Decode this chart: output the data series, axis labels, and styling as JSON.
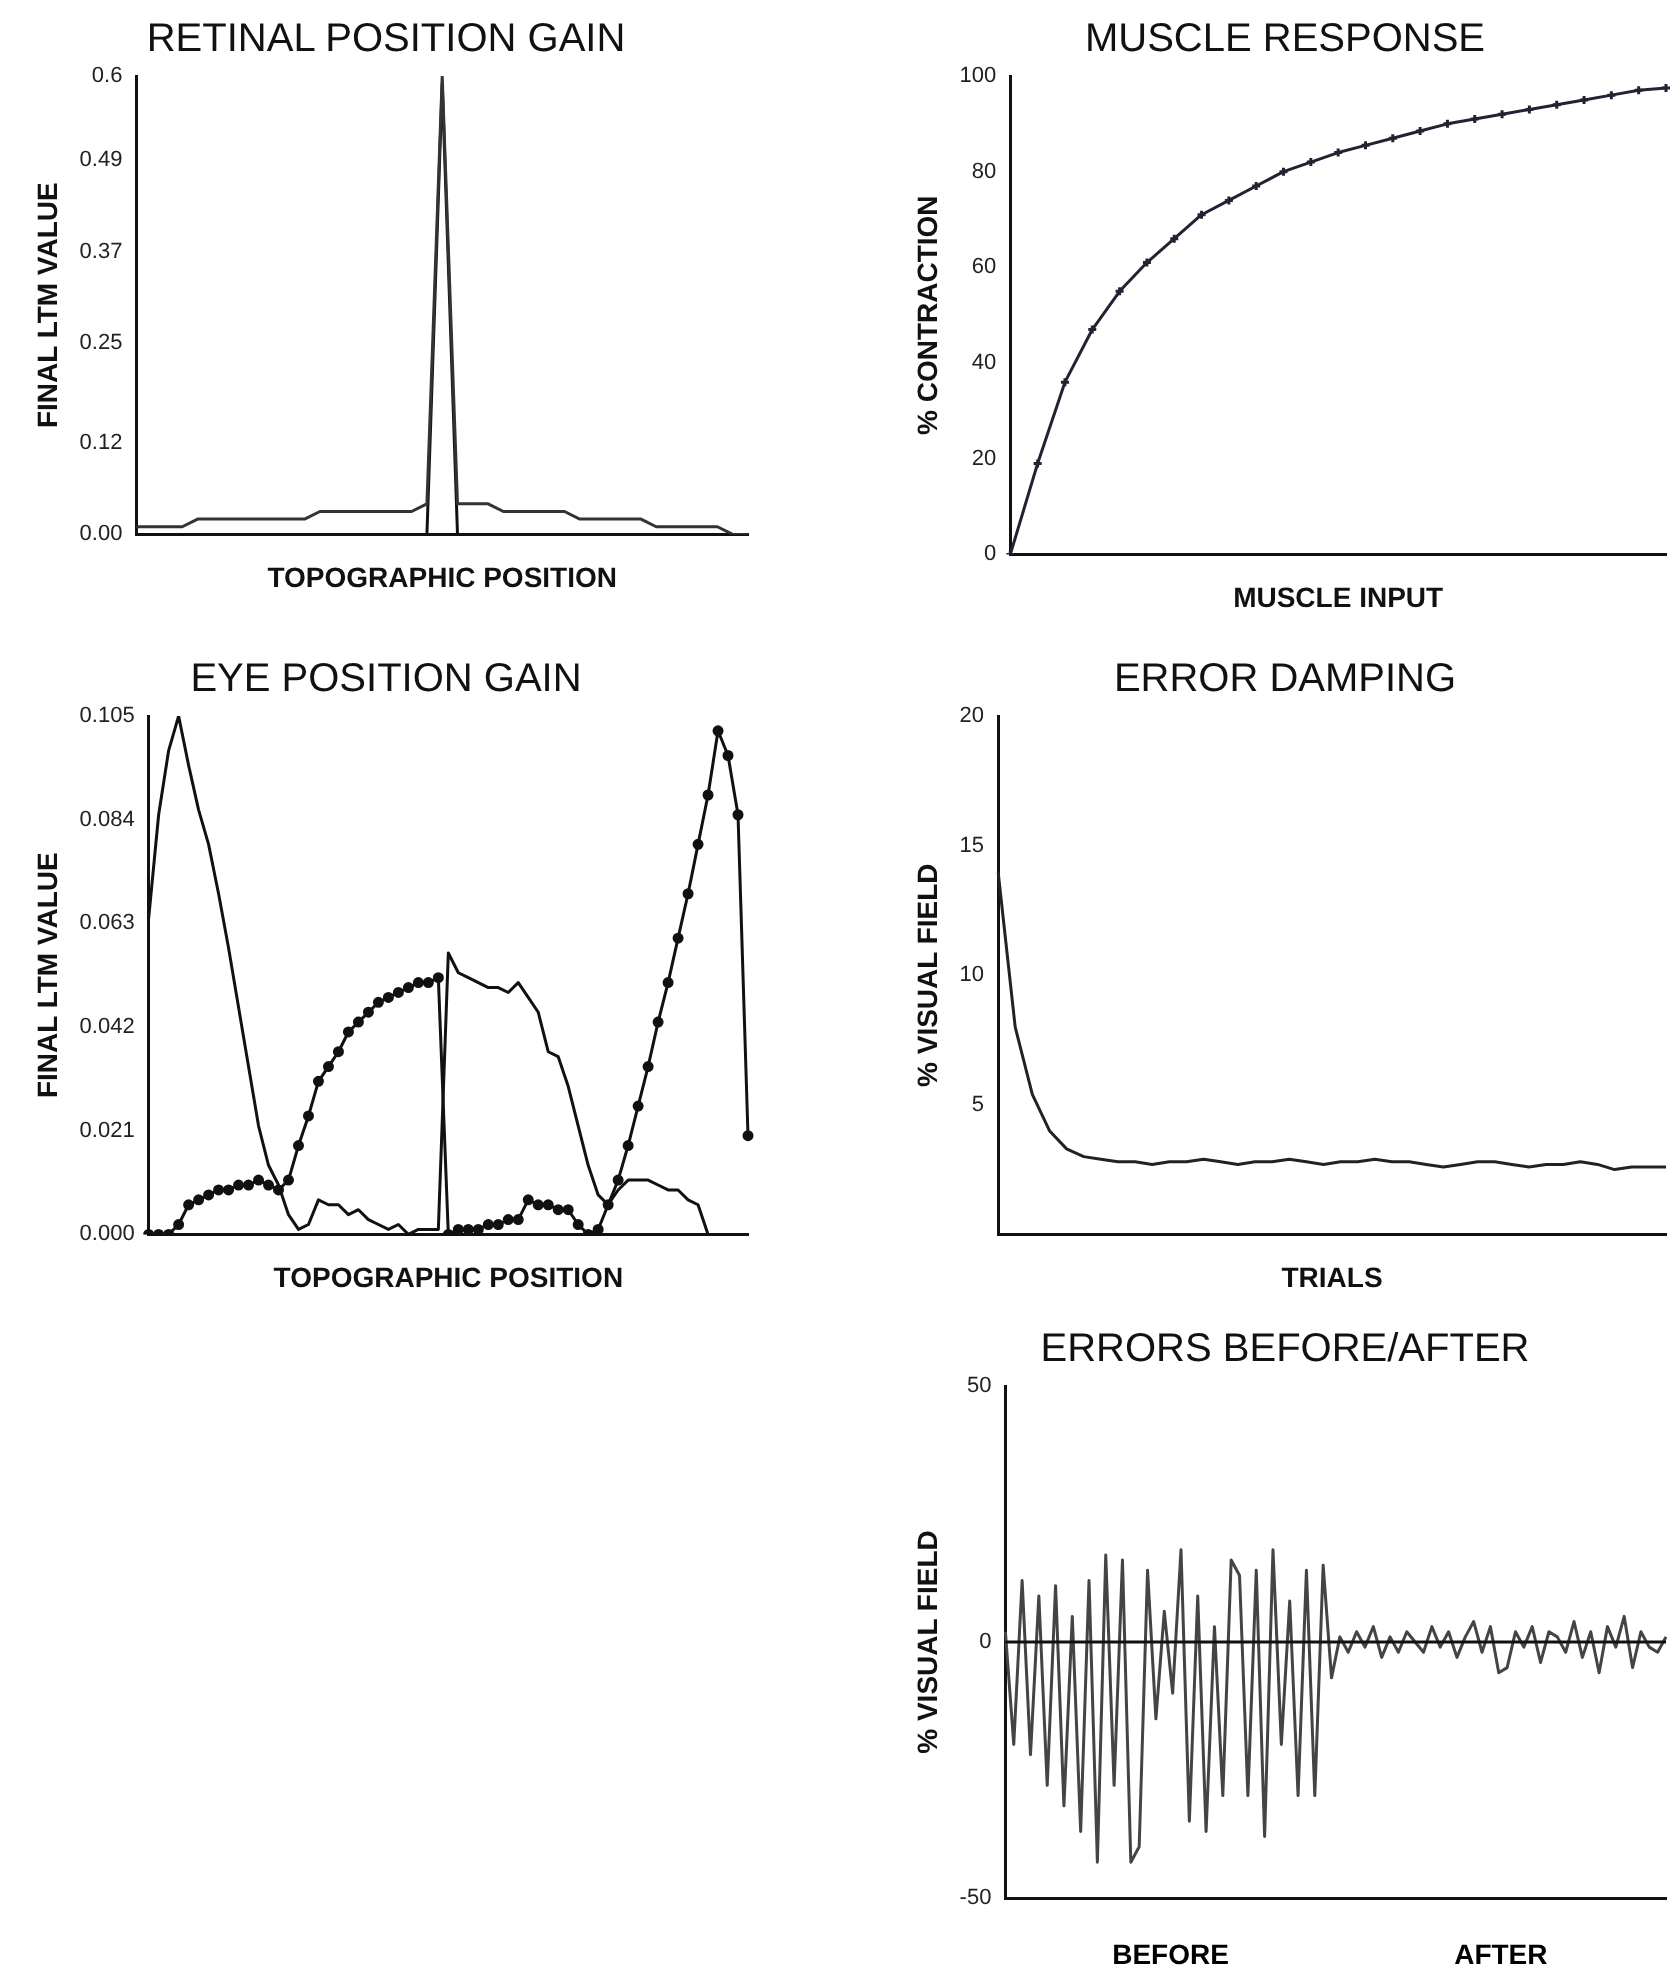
{
  "chart_data": [
    {
      "type": "line",
      "title": "RETINAL POSITION GAIN",
      "xlabel": "TOPOGRAPHIC POSITION",
      "ylabel": "FINAL LTM VALUE",
      "tick_labels": "y",
      "ylim": [
        0,
        0.6
      ],
      "yticks": [
        {
          "value": 0,
          "label": "0.00"
        },
        0.12,
        0.25,
        0.37,
        0.49,
        0.6
      ],
      "categories": [
        null,
        null,
        null,
        null,
        null,
        null,
        null,
        null,
        null,
        null,
        null,
        null,
        null,
        null,
        null,
        null,
        null,
        null,
        null,
        null,
        null,
        null,
        null,
        null,
        null,
        null,
        null,
        null,
        null,
        null,
        null,
        null,
        null,
        null,
        null,
        null,
        null,
        null,
        null,
        null,
        null
      ],
      "series": [
        {
          "color": "#333333",
          "values": [
            0.01,
            0.01,
            0.01,
            0.01,
            0.02,
            0.02,
            0.02,
            0.02,
            0.02,
            0.02,
            0.02,
            0.02,
            0.03,
            0.03,
            0.03,
            0.03,
            0.03,
            0.03,
            0.03,
            0.04,
            0.6,
            0.04,
            0.04,
            0.04,
            0.03,
            0.03,
            0.03,
            0.03,
            0.03,
            0.02,
            0.02,
            0.02,
            0.02,
            0.02,
            0.01,
            0.01,
            0.01,
            0.01,
            0.01,
            0,
            0
          ]
        },
        {
          "color": "#111111",
          "values": [
            0,
            0,
            0,
            0,
            0,
            0,
            0,
            0,
            0,
            0,
            0,
            0,
            0,
            0,
            0,
            0,
            0,
            0,
            0,
            0,
            0.59,
            0,
            0,
            0,
            0,
            0,
            0,
            0,
            0,
            0,
            0,
            0,
            0,
            0,
            0,
            0,
            0,
            0,
            0,
            0,
            0
          ]
        }
      ]
    },
    {
      "type": "line",
      "title": "MUSCLE RESPONSE",
      "xlabel": "MUSCLE INPUT",
      "ylabel": "% CONTRACTION",
      "tick_labels": "y",
      "ylim": [
        0,
        100
      ],
      "yticks": [
        0,
        20,
        40,
        60,
        80,
        100
      ],
      "categories": [
        null,
        null,
        null,
        null,
        null,
        null,
        null,
        null,
        null,
        null,
        null,
        null,
        null,
        null,
        null,
        null,
        null,
        null,
        null,
        null,
        null,
        null,
        null,
        null,
        null
      ],
      "series": [
        {
          "color": "#222233",
          "marker": "cross",
          "values": [
            0,
            19,
            36,
            47,
            55,
            61,
            66,
            71,
            74,
            77,
            80,
            82,
            84,
            85.5,
            87,
            88.5,
            90,
            91,
            92,
            93,
            94,
            95,
            96,
            97,
            97.5
          ]
        }
      ]
    },
    {
      "type": "line",
      "title": "EYE POSITION GAIN",
      "xlabel": "TOPOGRAPHIC POSITION",
      "ylabel": "FINAL LTM VALUE",
      "tick_labels": "y",
      "ylim": [
        0,
        0.105
      ],
      "yticks": [
        {
          "value": 0,
          "label": "0.000"
        },
        0.021,
        0.042,
        0.063,
        0.084,
        0.105
      ],
      "categories": [
        null,
        null,
        null,
        null,
        null,
        null,
        null,
        null,
        null,
        null,
        null,
        null,
        null,
        null,
        null,
        null,
        null,
        null,
        null,
        null,
        null,
        null,
        null,
        null,
        null,
        null,
        null,
        null,
        null,
        null,
        null,
        null,
        null,
        null,
        null,
        null,
        null,
        null,
        null,
        null,
        null,
        null,
        null,
        null,
        null,
        null,
        null,
        null,
        null,
        null,
        null,
        null,
        null,
        null,
        null,
        null,
        null,
        null,
        null,
        null,
        null
      ],
      "series": [
        {
          "color": "#111111",
          "values": [
            0.064,
            0.085,
            0.098,
            0.105,
            0.095,
            0.086,
            0.079,
            0.069,
            0.058,
            0.046,
            0.034,
            0.022,
            0.014,
            0.01,
            0.004,
            0.001,
            0.002,
            0.007,
            0.006,
            0.006,
            0.004,
            0.005,
            0.003,
            0.002,
            0.001,
            0.002,
            0.0,
            0.001,
            0.001,
            0.001,
            0.057,
            0.053,
            0.052,
            0.051,
            0.05,
            0.05,
            0.049,
            0.051,
            0.048,
            0.045,
            0.037,
            0.036,
            0.03,
            0.022,
            0.014,
            0.008,
            0.006,
            0.009,
            0.011,
            0.011,
            0.011,
            0.01,
            0.009,
            0.009,
            0.007,
            0.006,
            0.0,
            null,
            null,
            null,
            null
          ]
        },
        {
          "color": "#111111",
          "marker": "circle",
          "values": [
            0,
            0,
            0,
            0.002,
            0.006,
            0.007,
            0.008,
            0.009,
            0.009,
            0.01,
            0.01,
            0.011,
            0.01,
            0.009,
            0.011,
            0.018,
            0.024,
            0.031,
            0.034,
            0.037,
            0.041,
            0.043,
            0.045,
            0.047,
            0.048,
            0.049,
            0.05,
            0.051,
            0.051,
            0.052,
            0.0,
            0.001,
            0.001,
            0.001,
            0.002,
            0.002,
            0.003,
            0.003,
            0.007,
            0.006,
            0.006,
            0.005,
            0.005,
            0.002,
            0.0,
            0.001,
            0.006,
            0.011,
            0.018,
            0.026,
            0.034,
            0.043,
            0.051,
            0.06,
            0.069,
            0.079,
            0.089,
            0.102,
            0.097,
            0.085,
            0.02
          ]
        }
      ]
    },
    {
      "type": "line",
      "title": "ERROR DAMPING",
      "xlabel": "TRIALS",
      "ylabel": "% VISUAL FIELD",
      "tick_labels": "y",
      "ylim": [
        0,
        20
      ],
      "yticks": [
        5,
        10,
        15,
        20
      ],
      "categories": [
        null,
        null,
        null,
        null,
        null,
        null,
        null,
        null,
        null,
        null,
        null,
        null,
        null,
        null,
        null,
        null,
        null,
        null,
        null,
        null,
        null,
        null,
        null,
        null,
        null,
        null,
        null,
        null,
        null,
        null,
        null,
        null,
        null,
        null,
        null,
        null,
        null,
        null,
        null,
        null
      ],
      "series": [
        {
          "color": "#222222",
          "values": [
            14,
            8,
            5.4,
            4.0,
            3.3,
            3.0,
            2.9,
            2.8,
            2.8,
            2.7,
            2.8,
            2.8,
            2.9,
            2.8,
            2.7,
            2.8,
            2.8,
            2.9,
            2.8,
            2.7,
            2.8,
            2.8,
            2.9,
            2.8,
            2.8,
            2.7,
            2.6,
            2.7,
            2.8,
            2.8,
            2.7,
            2.6,
            2.7,
            2.7,
            2.8,
            2.7,
            2.5,
            2.6,
            2.6,
            2.6
          ]
        }
      ]
    },
    {
      "type": "line",
      "title": "ERRORS BEFORE/AFTER",
      "ylabel": "% VISUAL FIELD",
      "tick_labels": "y",
      "ylim": [
        -50,
        50
      ],
      "yticks": [
        -50,
        0,
        50
      ],
      "annotations": [
        "BEFORE",
        "AFTER"
      ],
      "ref_lines": [
        {
          "axis": "y",
          "value": 0,
          "color": "#111111"
        }
      ],
      "categories": [
        null,
        null,
        null,
        null,
        null,
        null,
        null,
        null,
        null,
        null,
        null,
        null,
        null,
        null,
        null,
        null,
        null,
        null,
        null,
        null,
        null,
        null,
        null,
        null,
        null,
        null,
        null,
        null,
        null,
        null,
        null,
        null,
        null,
        null,
        null,
        null,
        null,
        null,
        null,
        null,
        null,
        null,
        null,
        null,
        null,
        null,
        null,
        null,
        null,
        null,
        null,
        null,
        null,
        null,
        null,
        null,
        null,
        null,
        null,
        null,
        null,
        null,
        null,
        null,
        null,
        null,
        null,
        null,
        null,
        null,
        null,
        null,
        null,
        null,
        null,
        null,
        null,
        null,
        null,
        null
      ],
      "series": [
        {
          "color": "#444444",
          "values": [
            2,
            -20,
            12,
            -22,
            9,
            -28,
            11,
            -32,
            5,
            -37,
            12,
            -43,
            17,
            -28,
            16,
            -43,
            -40,
            14,
            -15,
            6,
            -10,
            18,
            -35,
            9,
            -37,
            3,
            -30,
            16,
            13,
            -30,
            14,
            -38,
            18,
            -20,
            8,
            -30,
            14,
            -30,
            15,
            -7,
            1,
            -2,
            2,
            -1,
            3,
            -3,
            1,
            -2,
            2,
            0,
            -2,
            3,
            -1,
            2,
            -3,
            1,
            4,
            -2,
            3,
            -6,
            -5,
            2,
            -1,
            3,
            -4,
            2,
            1,
            -2,
            4,
            -3,
            2,
            -6,
            3,
            -1,
            5,
            -5,
            2,
            -1,
            -2,
            1
          ]
        }
      ]
    }
  ]
}
